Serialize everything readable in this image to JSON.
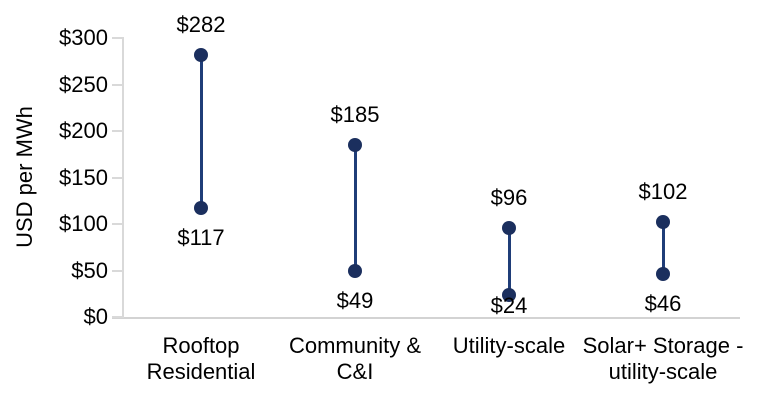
{
  "chart_data": {
    "type": "dumbbell",
    "title": "",
    "ylabel": "USD per MWh",
    "xlabel": "",
    "ylim": [
      0,
      300
    ],
    "ytick_interval": 50,
    "grid": false,
    "legend": false,
    "yticks": [
      {
        "value": 0,
        "label": "$0"
      },
      {
        "value": 50,
        "label": "$50"
      },
      {
        "value": 100,
        "label": "$100"
      },
      {
        "value": 150,
        "label": "$150"
      },
      {
        "value": 200,
        "label": "$200"
      },
      {
        "value": 250,
        "label": "$250"
      },
      {
        "value": 300,
        "label": "$300"
      }
    ],
    "categories": [
      {
        "label_lines": [
          "Rooftop",
          "Residential"
        ],
        "high": {
          "value": 282,
          "label": "$282"
        },
        "low": {
          "value": 117,
          "label": "$117"
        }
      },
      {
        "label_lines": [
          "Community &",
          "C&I"
        ],
        "high": {
          "value": 185,
          "label": "$185"
        },
        "low": {
          "value": 49,
          "label": "$49"
        }
      },
      {
        "label_lines": [
          "Utility-scale"
        ],
        "high": {
          "value": 96,
          "label": "$96"
        },
        "low": {
          "value": 24,
          "label": "$24"
        }
      },
      {
        "label_lines": [
          "Solar+ Storage -",
          "utility-scale"
        ],
        "high": {
          "value": 102,
          "label": "$102"
        },
        "low": {
          "value": 46,
          "label": "$46"
        }
      }
    ],
    "colors": {
      "marker": "#1B2F5E",
      "line": "#1F3D78",
      "axis_line": "#D9D9D9",
      "baseline": "#D3D3D3",
      "text": "#000000"
    }
  }
}
